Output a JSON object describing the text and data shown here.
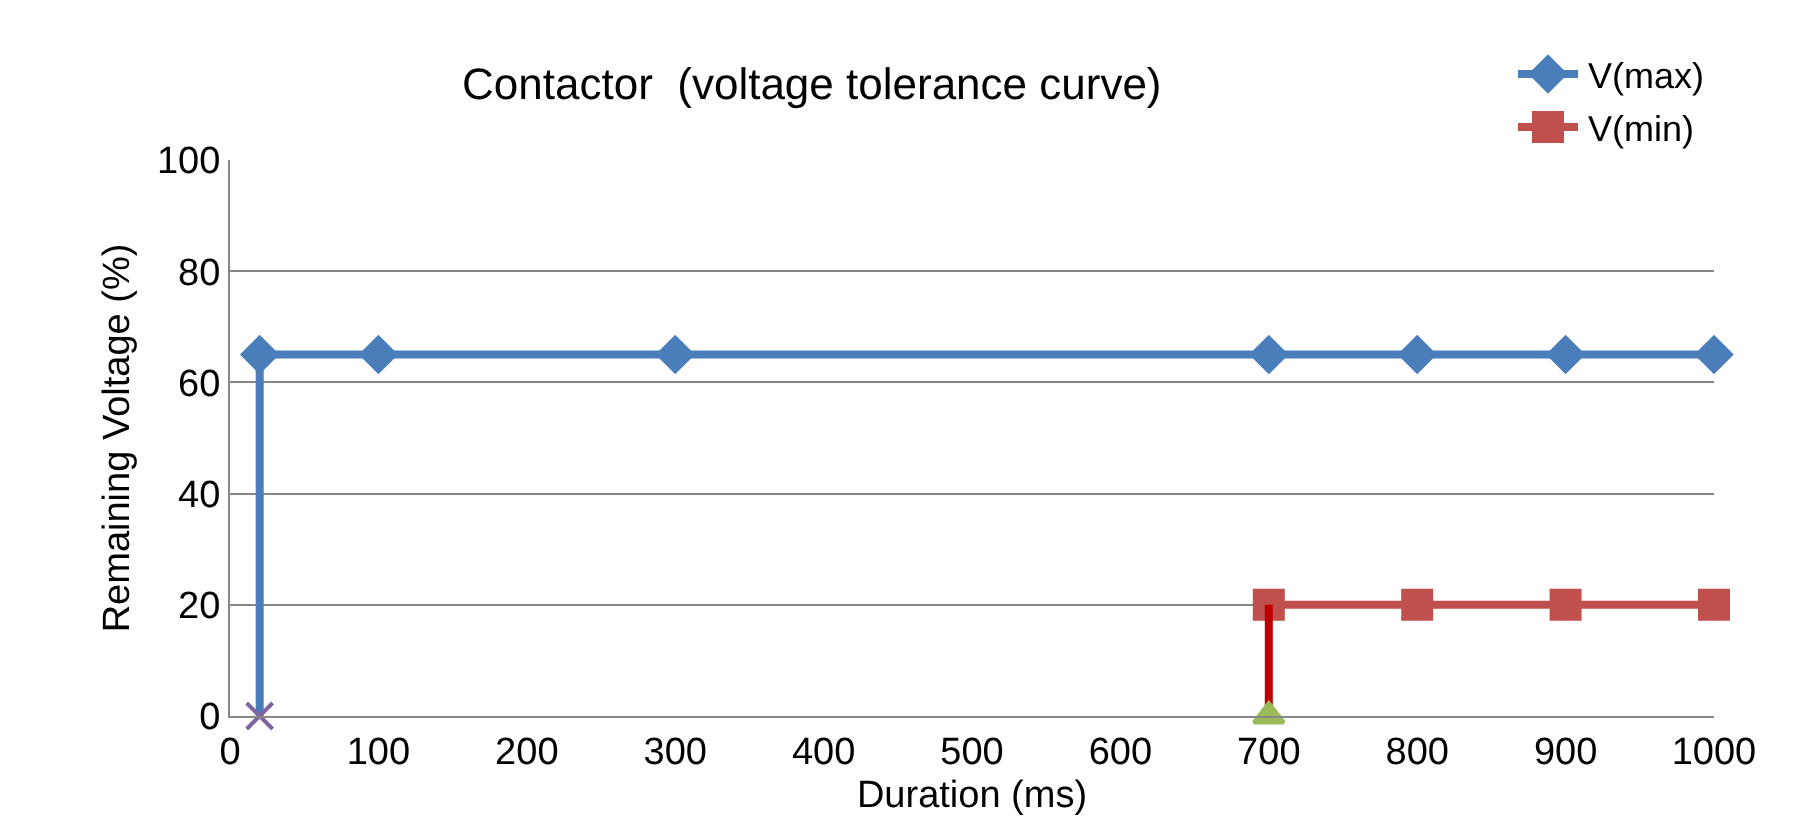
{
  "chart_data": {
    "type": "line",
    "title": "Contactor  (voltage tolerance curve)",
    "xlabel": "Duration (ms)",
    "ylabel": "Remaining Voltage (%)",
    "xlim": [
      0,
      1000
    ],
    "xticks": [
      0,
      100,
      200,
      300,
      400,
      500,
      600,
      700,
      800,
      900,
      1000
    ],
    "ylim": [
      0,
      100
    ],
    "yticks": [
      0,
      20,
      40,
      60,
      80,
      100
    ],
    "grid": "y",
    "legend": "top right",
    "series": [
      {
        "name": "V(max)",
        "color": "#4a7ebb",
        "marker": "diamond",
        "x": [
          20,
          100,
          300,
          700,
          800,
          900,
          1000
        ],
        "values": [
          65,
          65,
          65,
          65,
          65,
          65,
          65
        ]
      },
      {
        "name": "V(min)",
        "color": "#c0504d",
        "marker": "square",
        "x": [
          700,
          800,
          900,
          1000
        ],
        "values": [
          20,
          20,
          20,
          20
        ]
      },
      {
        "color": "#4a7ebb",
        "marker": "none",
        "x": [
          20,
          20
        ],
        "values": [
          0,
          65
        ]
      },
      {
        "color": "#c00000",
        "marker": "none",
        "x": [
          700,
          700
        ],
        "values": [
          0,
          20
        ]
      },
      {
        "type": "scatter",
        "color": "#8064a2",
        "marker": "cross",
        "x": [
          20
        ],
        "values": [
          0
        ]
      },
      {
        "type": "scatter",
        "color": "#9bbb59",
        "marker": "triangle",
        "x": [
          700
        ],
        "values": [
          0
        ]
      }
    ]
  }
}
